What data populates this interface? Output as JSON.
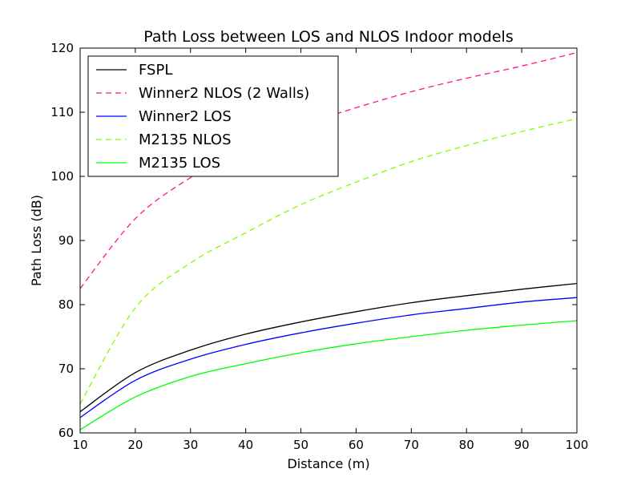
{
  "chart_data": {
    "type": "line",
    "title": "Path Loss between LOS and NLOS Indoor models",
    "xlabel": "Distance (m)",
    "ylabel": "Path Loss (dB)",
    "xlim": [
      10,
      100
    ],
    "ylim": [
      60,
      120
    ],
    "xticks": [
      10,
      20,
      30,
      40,
      50,
      60,
      70,
      80,
      90,
      100
    ],
    "yticks": [
      60,
      70,
      80,
      90,
      100,
      110,
      120
    ],
    "grid": false,
    "legend_position": "top-left",
    "x": [
      10,
      20,
      30,
      40,
      50,
      60,
      70,
      80,
      90,
      100
    ],
    "series": [
      {
        "name": "FSPL",
        "color": "#000000",
        "dash": "solid",
        "values": [
          63.3,
          69.4,
          72.9,
          75.4,
          77.3,
          78.9,
          80.3,
          81.4,
          82.4,
          83.3
        ]
      },
      {
        "name": "Winner2 NLOS (2 Walls)",
        "color": "#ff1493",
        "dash": "dashed",
        "values": [
          82.5,
          93.4,
          99.8,
          104.4,
          107.9,
          110.7,
          113.2,
          115.3,
          117.2,
          119.3
        ]
      },
      {
        "name": "Winner2 LOS",
        "color": "#0000ff",
        "dash": "solid",
        "values": [
          62.4,
          68.2,
          71.5,
          73.8,
          75.6,
          77.1,
          78.4,
          79.4,
          80.4,
          81.1
        ]
      },
      {
        "name": "M2135 NLOS",
        "color": "#7fff00",
        "dash": "dashed",
        "values": [
          64.5,
          79.5,
          86.5,
          91.2,
          95.6,
          99.1,
          102.3,
          104.8,
          107.0,
          109.0
        ]
      },
      {
        "name": "M2135 LOS",
        "color": "#00ff00",
        "dash": "solid",
        "values": [
          60.5,
          65.6,
          68.8,
          70.8,
          72.5,
          73.9,
          75.0,
          76.0,
          76.8,
          77.5
        ]
      }
    ]
  }
}
